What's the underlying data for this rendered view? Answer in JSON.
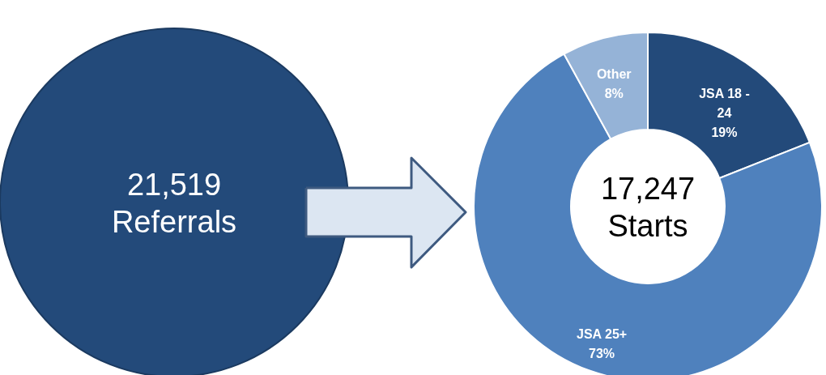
{
  "chart_data": {
    "type": "donut",
    "categories": [
      "JSA 18 - 24",
      "JSA 25+",
      "Other"
    ],
    "values": [
      19,
      73,
      8
    ],
    "colors": [
      "#234a7a",
      "#4f81bd",
      "#95b3d7"
    ],
    "value_labels": [
      "19%",
      "73%",
      "8%"
    ],
    "annotations": [
      "21,519 Referrals",
      "17,247 Starts"
    ]
  }
}
